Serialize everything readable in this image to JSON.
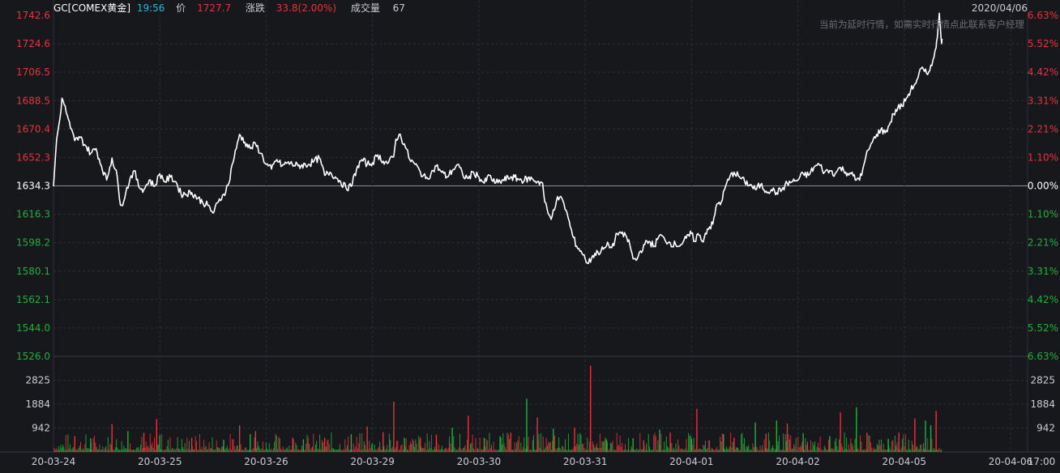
{
  "header": {
    "symbol": "GC[COMEX黄金]",
    "time": "19:56",
    "price_label": "价",
    "price": "1727.7",
    "change_label": "涨跌",
    "change": "33.8(2.00%)",
    "volume_label": "成交量",
    "volume": "67",
    "date": "2020/04/06"
  },
  "notice": "当前为延时行情，如需实时行情点此联系客户经理",
  "colors": {
    "background": "#17181c",
    "grid": "#2c2f36",
    "up": "#e8323c",
    "down": "#1fb13a",
    "line": "#ffffff",
    "time": "#28b9d6",
    "text": "#c9ccd3"
  },
  "chart_data": [
    {
      "type": "line",
      "series": [],
      "y_ticks": [
        "1742.6",
        "1724.6",
        "1706.5",
        "1688.5",
        "1670.4",
        "1652.3",
        "1634.3",
        "1616.3",
        "1598.2",
        "1580.1",
        "1562.1",
        "1544.0",
        "1526.0"
      ],
      "y_ticks_right": [
        "6.63%",
        "5.52%",
        "4.42%",
        "3.31%",
        "2.21%",
        "1.10%",
        "0.00%",
        "1.10%",
        "2.21%",
        "3.31%",
        "4.42%",
        "5.52%",
        "6.63%"
      ],
      "ylim": [
        1526.0,
        1742.6
      ],
      "reference": 1634.3,
      "xlim": [
        0,
        9.16
      ],
      "x_ticks": [
        "20-03-24",
        "20-03-25",
        "20-03-26",
        "20-03-29",
        "20-03-30",
        "20-03-31",
        "20-04-01",
        "20-04-02",
        "20-04-05",
        "20-04-06",
        "17:00"
      ],
      "points": [
        [
          0.0,
          1634
        ],
        [
          0.03,
          1664
        ],
        [
          0.06,
          1677
        ],
        [
          0.08,
          1690
        ],
        [
          0.1,
          1686
        ],
        [
          0.13,
          1679
        ],
        [
          0.16,
          1671
        ],
        [
          0.2,
          1663
        ],
        [
          0.25,
          1665
        ],
        [
          0.3,
          1660
        ],
        [
          0.35,
          1655
        ],
        [
          0.4,
          1658
        ],
        [
          0.45,
          1647
        ],
        [
          0.5,
          1638
        ],
        [
          0.55,
          1652
        ],
        [
          0.6,
          1640
        ],
        [
          0.62,
          1626
        ],
        [
          0.64,
          1622
        ],
        [
          0.68,
          1630
        ],
        [
          0.72,
          1639
        ],
        [
          0.76,
          1644
        ],
        [
          0.8,
          1634
        ],
        [
          0.85,
          1632
        ],
        [
          0.9,
          1638
        ],
        [
          0.95,
          1634
        ],
        [
          1.0,
          1642
        ],
        [
          1.05,
          1637
        ],
        [
          1.1,
          1640
        ],
        [
          1.15,
          1637
        ],
        [
          1.2,
          1629
        ],
        [
          1.3,
          1630
        ],
        [
          1.4,
          1624
        ],
        [
          1.45,
          1622
        ],
        [
          1.5,
          1617
        ],
        [
          1.55,
          1624
        ],
        [
          1.6,
          1629
        ],
        [
          1.65,
          1636
        ],
        [
          1.68,
          1648
        ],
        [
          1.72,
          1658
        ],
        [
          1.75,
          1667
        ],
        [
          1.8,
          1662
        ],
        [
          1.85,
          1658
        ],
        [
          1.9,
          1661
        ],
        [
          1.95,
          1655
        ],
        [
          2.0,
          1648
        ],
        [
          2.05,
          1645
        ],
        [
          2.1,
          1651
        ],
        [
          2.15,
          1647
        ],
        [
          2.2,
          1649
        ],
        [
          2.3,
          1647
        ],
        [
          2.4,
          1648
        ],
        [
          2.45,
          1650
        ],
        [
          2.5,
          1652
        ],
        [
          2.55,
          1641
        ],
        [
          2.6,
          1643
        ],
        [
          2.65,
          1640
        ],
        [
          2.7,
          1637
        ],
        [
          2.75,
          1633
        ],
        [
          2.8,
          1634
        ],
        [
          2.85,
          1645
        ],
        [
          2.9,
          1651
        ],
        [
          2.95,
          1648
        ],
        [
          3.0,
          1649
        ],
        [
          3.05,
          1654
        ],
        [
          3.1,
          1650
        ],
        [
          3.15,
          1649
        ],
        [
          3.2,
          1653
        ],
        [
          3.22,
          1664
        ],
        [
          3.25,
          1667
        ],
        [
          3.3,
          1661
        ],
        [
          3.35,
          1651
        ],
        [
          3.4,
          1648
        ],
        [
          3.45,
          1643
        ],
        [
          3.5,
          1639
        ],
        [
          3.55,
          1642
        ],
        [
          3.6,
          1647
        ],
        [
          3.65,
          1643
        ],
        [
          3.7,
          1640
        ],
        [
          3.75,
          1644
        ],
        [
          3.8,
          1648
        ],
        [
          3.85,
          1641
        ],
        [
          3.9,
          1639
        ],
        [
          3.95,
          1643
        ],
        [
          4.0,
          1640
        ],
        [
          4.05,
          1636
        ],
        [
          4.1,
          1641
        ],
        [
          4.15,
          1636
        ],
        [
          4.2,
          1637
        ],
        [
          4.3,
          1640
        ],
        [
          4.4,
          1638
        ],
        [
          4.5,
          1639
        ],
        [
          4.55,
          1637
        ],
        [
          4.6,
          1636
        ],
        [
          4.62,
          1624
        ],
        [
          4.65,
          1617
        ],
        [
          4.68,
          1613
        ],
        [
          4.7,
          1619
        ],
        [
          4.73,
          1625
        ],
        [
          4.76,
          1627
        ],
        [
          4.8,
          1623
        ],
        [
          4.84,
          1614
        ],
        [
          4.88,
          1603
        ],
        [
          4.92,
          1596
        ],
        [
          4.96,
          1593
        ],
        [
          5.0,
          1588
        ],
        [
          5.03,
          1585
        ],
        [
          5.07,
          1590
        ],
        [
          5.12,
          1592
        ],
        [
          5.17,
          1594
        ],
        [
          5.22,
          1597
        ],
        [
          5.25,
          1595
        ],
        [
          5.28,
          1600
        ],
        [
          5.3,
          1604
        ],
        [
          5.33,
          1605
        ],
        [
          5.36,
          1602
        ],
        [
          5.38,
          1603
        ],
        [
          5.42,
          1597
        ],
        [
          5.45,
          1588
        ],
        [
          5.48,
          1587
        ],
        [
          5.52,
          1593
        ],
        [
          5.56,
          1597
        ],
        [
          5.6,
          1599
        ],
        [
          5.65,
          1596
        ],
        [
          5.7,
          1603
        ],
        [
          5.75,
          1600
        ],
        [
          5.8,
          1598
        ],
        [
          5.85,
          1597
        ],
        [
          5.9,
          1597
        ],
        [
          5.95,
          1601
        ],
        [
          6.0,
          1604
        ],
        [
          6.03,
          1599
        ],
        [
          6.06,
          1604
        ],
        [
          6.1,
          1599
        ],
        [
          6.15,
          1607
        ],
        [
          6.2,
          1610
        ],
        [
          6.24,
          1623
        ],
        [
          6.28,
          1624
        ],
        [
          6.32,
          1634
        ],
        [
          6.36,
          1640
        ],
        [
          6.4,
          1643
        ],
        [
          6.45,
          1640
        ],
        [
          6.5,
          1637
        ],
        [
          6.55,
          1635
        ],
        [
          6.6,
          1632
        ],
        [
          6.65,
          1635
        ],
        [
          6.7,
          1631
        ],
        [
          6.75,
          1632
        ],
        [
          6.8,
          1630
        ],
        [
          6.85,
          1632
        ],
        [
          6.9,
          1636
        ],
        [
          6.95,
          1637
        ],
        [
          7.0,
          1638
        ],
        [
          7.05,
          1642
        ],
        [
          7.1,
          1641
        ],
        [
          7.15,
          1646
        ],
        [
          7.2,
          1648
        ],
        [
          7.25,
          1643
        ],
        [
          7.3,
          1644
        ],
        [
          7.35,
          1642
        ],
        [
          7.4,
          1646
        ],
        [
          7.45,
          1643
        ],
        [
          7.5,
          1642
        ],
        [
          7.55,
          1638
        ],
        [
          7.6,
          1641
        ],
        [
          7.63,
          1650
        ],
        [
          7.66,
          1657
        ],
        [
          7.7,
          1662
        ],
        [
          7.74,
          1667
        ],
        [
          7.78,
          1670
        ],
        [
          7.82,
          1668
        ],
        [
          7.86,
          1673
        ],
        [
          7.9,
          1680
        ],
        [
          7.94,
          1684
        ],
        [
          7.98,
          1685
        ],
        [
          8.02,
          1690
        ],
        [
          8.06,
          1695
        ],
        [
          8.1,
          1699
        ],
        [
          8.13,
          1703
        ],
        [
          8.16,
          1709
        ],
        [
          8.19,
          1707
        ],
        [
          8.22,
          1705
        ],
        [
          8.25,
          1711
        ],
        [
          8.28,
          1716
        ],
        [
          8.3,
          1722
        ],
        [
          8.31,
          1728
        ],
        [
          8.32,
          1737
        ],
        [
          8.33,
          1744
        ],
        [
          8.34,
          1735
        ],
        [
          8.35,
          1726
        ],
        [
          8.355,
          1727.7
        ]
      ]
    },
    {
      "type": "bar",
      "y_ticks": [
        "2825",
        "1884",
        "942"
      ],
      "ylim": [
        0,
        3767
      ],
      "bars_up": [
        [
          0.2,
          620
        ],
        [
          0.55,
          1100
        ],
        [
          0.85,
          760
        ],
        [
          0.97,
          1300
        ],
        [
          1.3,
          560
        ],
        [
          1.75,
          1050
        ],
        [
          1.9,
          820
        ],
        [
          2.25,
          560
        ],
        [
          2.55,
          560
        ],
        [
          2.95,
          1000
        ],
        [
          3.1,
          780
        ],
        [
          3.2,
          1980
        ],
        [
          3.45,
          560
        ],
        [
          3.6,
          680
        ],
        [
          3.9,
          1430
        ],
        [
          4.3,
          760
        ],
        [
          4.55,
          1360
        ],
        [
          4.9,
          960
        ],
        [
          5.05,
          3400
        ],
        [
          5.55,
          460
        ],
        [
          5.8,
          760
        ],
        [
          6.05,
          1700
        ],
        [
          6.4,
          560
        ],
        [
          6.7,
          720
        ],
        [
          6.9,
          1120
        ],
        [
          7.4,
          1560
        ],
        [
          7.65,
          760
        ],
        [
          7.95,
          760
        ],
        [
          8.1,
          1320
        ],
        [
          8.3,
          1620
        ]
      ],
      "bars_down": [
        [
          0.35,
          540
        ],
        [
          0.7,
          820
        ],
        [
          1.0,
          660
        ],
        [
          1.6,
          480
        ],
        [
          1.85,
          700
        ],
        [
          2.35,
          500
        ],
        [
          2.8,
          700
        ],
        [
          3.3,
          560
        ],
        [
          3.75,
          960
        ],
        [
          4.05,
          560
        ],
        [
          4.2,
          620
        ],
        [
          4.45,
          2100
        ],
        [
          4.7,
          920
        ],
        [
          5.2,
          500
        ],
        [
          5.45,
          540
        ],
        [
          5.7,
          880
        ],
        [
          6.0,
          520
        ],
        [
          6.3,
          700
        ],
        [
          6.6,
          1160
        ],
        [
          6.8,
          1240
        ],
        [
          7.05,
          740
        ],
        [
          7.3,
          620
        ],
        [
          7.55,
          1760
        ],
        [
          7.85,
          520
        ],
        [
          8.2,
          1240
        ],
        [
          8.25,
          1050
        ]
      ]
    }
  ]
}
